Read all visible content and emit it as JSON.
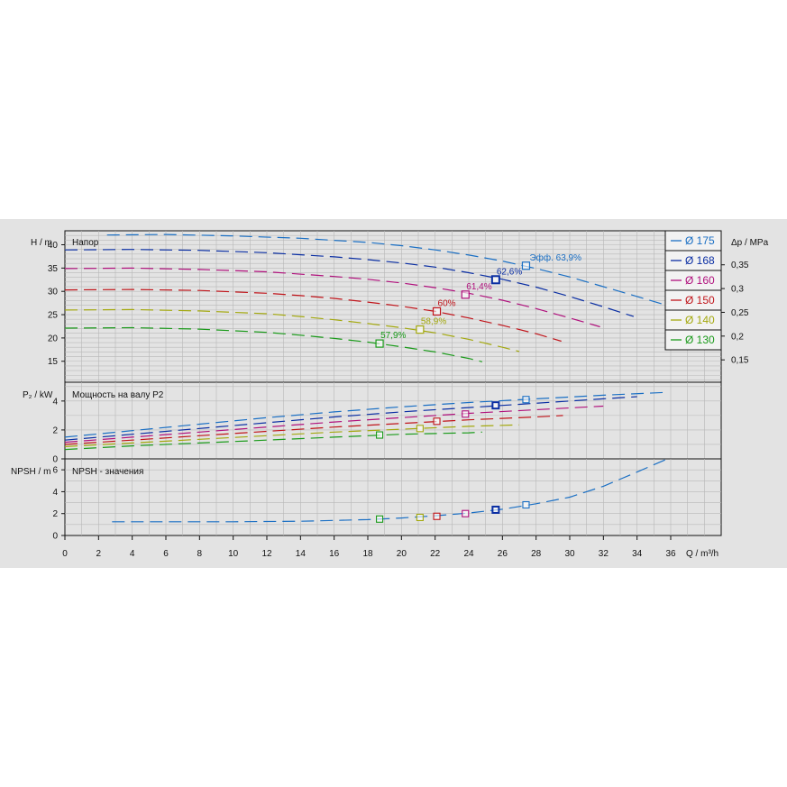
{
  "panels": {
    "head": {
      "axis_label": "H / m",
      "title": "Напор",
      "right_axis_label": "Δp / MPa"
    },
    "power": {
      "axis_label": "P₂ / kW",
      "title": "Мощность на валу P2"
    },
    "npsh": {
      "axis_label": "NPSH / m",
      "title": "NPSH - значения"
    }
  },
  "x_axis_label": "Q / m³/h",
  "eff_prefix": "Эфф.",
  "chart_data": [
    {
      "type": "line",
      "title": "Напор",
      "ylabel": "H / m",
      "y2label": "Δp / MPa",
      "xlim": [
        0,
        39
      ],
      "ylim": [
        10.5,
        43
      ],
      "x_ticks": [
        0,
        2,
        4,
        6,
        8,
        10,
        12,
        14,
        16,
        18,
        20,
        22,
        24,
        26,
        28,
        30,
        32,
        34,
        36
      ],
      "y_ticks": [
        15,
        20,
        25,
        30,
        35,
        40
      ],
      "y2_ticks": [
        "0,15",
        "0,2",
        "0,25",
        "0,3",
        "0,35"
      ],
      "y2_tick_h": [
        15.3,
        20.4,
        25.5,
        30.6,
        35.7
      ],
      "grid": true,
      "legend": {
        "position": "right"
      },
      "series": [
        {
          "name": "Ø 175",
          "color": "#1a6fc4",
          "eff_label": "63,9%",
          "eff_point": [
            27.4,
            35.5
          ],
          "x": [
            2.5,
            6,
            10,
            14,
            18,
            20,
            22,
            24,
            26,
            28,
            30,
            32,
            34,
            35.5
          ],
          "y": [
            42.1,
            42.2,
            41.9,
            41.4,
            40.5,
            39.8,
            38.9,
            37.8,
            36.5,
            34.9,
            33.1,
            31.0,
            28.9,
            27.3
          ]
        },
        {
          "name": "Ø 168",
          "color": "#0a2ea3",
          "eff_label": "62,6%",
          "eff_point": [
            25.6,
            32.5
          ],
          "x": [
            0,
            4,
            8,
            12,
            16,
            18,
            20,
            22,
            24,
            26,
            28,
            30,
            32,
            33.8
          ],
          "y": [
            38.9,
            39.0,
            38.8,
            38.3,
            37.4,
            36.8,
            36.1,
            35.2,
            34.0,
            32.6,
            30.9,
            28.9,
            26.7,
            24.6
          ]
        },
        {
          "name": "Ø 160",
          "color": "#b0107c",
          "eff_label": "61,4%",
          "eff_point": [
            23.8,
            29.3
          ],
          "x": [
            0,
            4,
            8,
            12,
            16,
            18,
            20,
            22,
            24,
            26,
            28,
            30,
            31.8
          ],
          "y": [
            34.9,
            35.0,
            34.7,
            34.2,
            33.2,
            32.6,
            31.8,
            30.8,
            29.6,
            28.1,
            26.3,
            24.3,
            22.4
          ]
        },
        {
          "name": "Ø 150",
          "color": "#c0141a",
          "eff_label": "60%",
          "eff_point": [
            22.1,
            25.7
          ],
          "x": [
            0,
            4,
            8,
            12,
            14,
            16,
            18,
            20,
            22,
            24,
            26,
            28,
            29.5
          ],
          "y": [
            30.3,
            30.4,
            30.2,
            29.6,
            29.1,
            28.5,
            27.7,
            26.8,
            25.7,
            24.3,
            22.7,
            20.9,
            19.3
          ]
        },
        {
          "name": "Ø 140",
          "color": "#a3a80e",
          "eff_label": "58,9%",
          "eff_point": [
            21.1,
            21.8
          ],
          "x": [
            0,
            4,
            8,
            12,
            14,
            16,
            18,
            20,
            22,
            24,
            26,
            27
          ],
          "y": [
            26.0,
            26.1,
            25.8,
            25.2,
            24.6,
            23.9,
            23.1,
            22.2,
            21.1,
            19.7,
            18.0,
            17.1
          ]
        },
        {
          "name": "Ø 130",
          "color": "#1a9a1a",
          "eff_label": "57,9%",
          "eff_point": [
            18.7,
            18.8
          ],
          "x": [
            0,
            4,
            8,
            12,
            14,
            16,
            18,
            20,
            22,
            24,
            24.8
          ],
          "y": [
            22.1,
            22.2,
            21.9,
            21.2,
            20.6,
            19.9,
            19.1,
            18.1,
            17.0,
            15.6,
            14.9
          ]
        }
      ]
    },
    {
      "type": "line",
      "title": "Мощность на валу P2",
      "ylabel": "P₂ / kW",
      "xlim": [
        0,
        39
      ],
      "ylim": [
        0,
        5.3
      ],
      "y_ticks": [
        0,
        2,
        4
      ],
      "grid": true,
      "series": [
        {
          "name": "Ø 175",
          "color": "#1a6fc4",
          "op_point": [
            27.4,
            4.1
          ],
          "x": [
            0,
            4,
            8,
            12,
            16,
            20,
            24,
            28,
            32,
            35.8
          ],
          "y": [
            1.5,
            1.95,
            2.4,
            2.85,
            3.25,
            3.6,
            3.9,
            4.15,
            4.4,
            4.6
          ]
        },
        {
          "name": "Ø 168",
          "color": "#0a2ea3",
          "op_point": [
            25.6,
            3.7
          ],
          "x": [
            0,
            4,
            8,
            12,
            16,
            20,
            24,
            28,
            32,
            34
          ],
          "y": [
            1.3,
            1.7,
            2.1,
            2.5,
            2.9,
            3.25,
            3.55,
            3.85,
            4.15,
            4.3
          ]
        },
        {
          "name": "Ø 160",
          "color": "#b0107c",
          "op_point": [
            23.8,
            3.1
          ],
          "x": [
            0,
            4,
            8,
            12,
            16,
            20,
            24,
            28,
            32
          ],
          "y": [
            1.15,
            1.5,
            1.85,
            2.2,
            2.55,
            2.85,
            3.15,
            3.4,
            3.65
          ]
        },
        {
          "name": "Ø 150",
          "color": "#c0141a",
          "op_point": [
            22.1,
            2.6
          ],
          "x": [
            0,
            4,
            8,
            12,
            16,
            20,
            24,
            28,
            29.6
          ],
          "y": [
            1.0,
            1.3,
            1.6,
            1.9,
            2.2,
            2.45,
            2.7,
            2.9,
            3.0
          ]
        },
        {
          "name": "Ø 140",
          "color": "#a3a80e",
          "op_point": [
            21.1,
            2.1
          ],
          "x": [
            0,
            4,
            8,
            12,
            16,
            20,
            24,
            27
          ],
          "y": [
            0.85,
            1.1,
            1.35,
            1.6,
            1.85,
            2.05,
            2.25,
            2.35
          ]
        },
        {
          "name": "Ø 130",
          "color": "#1a9a1a",
          "op_point": [
            18.7,
            1.65
          ],
          "x": [
            0,
            4,
            8,
            12,
            16,
            20,
            24,
            24.8
          ],
          "y": [
            0.65,
            0.9,
            1.1,
            1.3,
            1.5,
            1.7,
            1.8,
            1.85
          ]
        }
      ]
    },
    {
      "type": "line",
      "title": "NPSH - значения",
      "ylabel": "NPSH / m",
      "xlabel": "Q / m³/h",
      "xlim": [
        0,
        39
      ],
      "ylim": [
        0,
        7
      ],
      "y_ticks": [
        0,
        2,
        4,
        6
      ],
      "grid": true,
      "series": [
        {
          "name": "NPSH",
          "color": "#1a6fc4",
          "x": [
            2.8,
            6,
            10,
            14,
            18,
            20,
            22,
            24,
            26,
            28,
            30,
            32,
            34,
            35.8
          ],
          "y": [
            1.25,
            1.25,
            1.25,
            1.3,
            1.45,
            1.6,
            1.8,
            2.05,
            2.4,
            2.9,
            3.5,
            4.5,
            5.8,
            7.0
          ]
        }
      ],
      "op_points": [
        {
          "name": "Ø 130",
          "color": "#1a9a1a",
          "x": 18.7,
          "y": 1.5
        },
        {
          "name": "Ø 140",
          "color": "#a3a80e",
          "x": 21.1,
          "y": 1.65
        },
        {
          "name": "Ø 150",
          "color": "#c0141a",
          "x": 22.1,
          "y": 1.75
        },
        {
          "name": "Ø 160",
          "color": "#b0107c",
          "x": 23.8,
          "y": 2.0
        },
        {
          "name": "Ø 168",
          "color": "#0a2ea3",
          "x": 25.6,
          "y": 2.35
        },
        {
          "name": "Ø 175",
          "color": "#1a6fc4",
          "x": 27.4,
          "y": 2.8
        }
      ]
    }
  ]
}
